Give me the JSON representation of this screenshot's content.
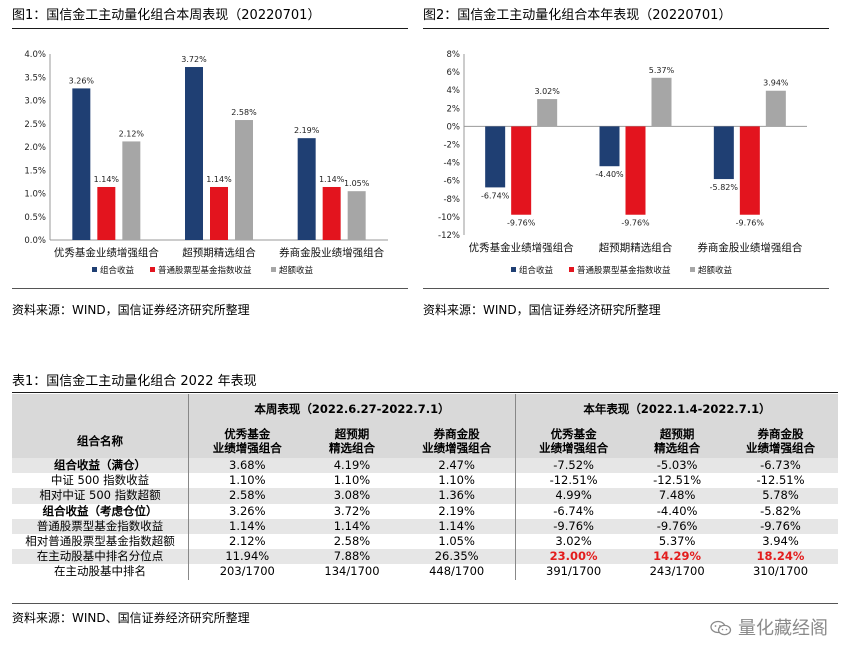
{
  "figure1": {
    "title": "图1：国信金工主动量化组合本周表现（20220701）",
    "source": "资料来源：WIND，国信证券经济研究所整理",
    "legend_icon": "legend-square-icon"
  },
  "figure2": {
    "title": "图2：国信金工主动量化组合本年表现（20220701）",
    "source": "资料来源：WIND，国信证券经济研究所整理",
    "legend_icon": "legend-square-icon"
  },
  "table": {
    "title": "表1：国信金工主动量化组合 2022 年表现",
    "header_week": "本周表现（2022.6.27-2022.7.1）",
    "header_year": "本年表现（2022.1.4-2022.7.1）",
    "col_name": "组合名称",
    "portfolios": [
      [
        "优秀基金",
        "业绩增强组合"
      ],
      [
        "超预期",
        "精选组合"
      ],
      [
        "券商金股",
        "业绩增强组合"
      ]
    ],
    "rows": [
      {
        "label": "组合收益（满仓）",
        "cells": [
          "3.68%",
          "4.19%",
          "2.47%",
          "-7.52%",
          "-5.03%",
          "-6.73%"
        ]
      },
      {
        "label": "中证 500 指数收益",
        "cells": [
          "1.10%",
          "1.10%",
          "1.10%",
          "-12.51%",
          "-12.51%",
          "-12.51%"
        ]
      },
      {
        "label": "相对中证 500 指数超额",
        "cells": [
          "2.58%",
          "3.08%",
          "1.36%",
          "4.99%",
          "7.48%",
          "5.78%"
        ]
      },
      {
        "label": "组合收益（考虑仓位）",
        "cells": [
          "3.26%",
          "3.72%",
          "2.19%",
          "-6.74%",
          "-4.40%",
          "-5.82%"
        ]
      },
      {
        "label": "普通股票型基金指数收益",
        "cells": [
          "1.14%",
          "1.14%",
          "1.14%",
          "-9.76%",
          "-9.76%",
          "-9.76%"
        ]
      },
      {
        "label": "相对普通股票型基金指数超额",
        "cells": [
          "2.12%",
          "2.58%",
          "1.05%",
          "3.02%",
          "5.37%",
          "3.94%"
        ]
      },
      {
        "label": "在主动股基中排名分位点",
        "cells": [
          "11.94%",
          "7.88%",
          "26.35%",
          "23.00%",
          "14.29%",
          "18.24%"
        ]
      },
      {
        "label": "在主动股基中排名",
        "cells": [
          "203/1700",
          "134/1700",
          "448/1700",
          "391/1700",
          "243/1700",
          "310/1700"
        ]
      }
    ],
    "source": "资料来源：WIND、国信证券经济研究所整理"
  },
  "watermark": {
    "text": "量化藏经阁",
    "icon": "wechat-icon"
  },
  "colors": {
    "blue": "#1f3f73",
    "red": "#e3141e",
    "gray": "#a6a6a6",
    "highlight": "#e31c1c"
  },
  "chart_data": [
    {
      "type": "bar",
      "title": "图1：国信金工主动量化组合本周表现（20220701）",
      "categories": [
        "优秀基金业绩增强组合",
        "超预期精选组合",
        "券商金股业绩增强组合"
      ],
      "series": [
        {
          "name": "组合收益",
          "values": [
            3.26,
            3.72,
            2.19
          ]
        },
        {
          "name": "普通股票型基金指数收益",
          "values": [
            1.14,
            1.14,
            1.14
          ]
        },
        {
          "name": "超额收益",
          "values": [
            2.12,
            2.58,
            1.05
          ]
        }
      ],
      "value_labels": [
        [
          "3.26%",
          "3.72%",
          "2.19%"
        ],
        [
          "1.14%",
          "1.14%",
          "1.14%"
        ],
        [
          "2.12%",
          "2.58%",
          "1.05%"
        ]
      ],
      "yticks": [
        "0.0%",
        "0.5%",
        "1.0%",
        "1.5%",
        "2.0%",
        "2.5%",
        "3.0%",
        "3.5%",
        "4.0%"
      ],
      "ylim": [
        0,
        4
      ],
      "legend": "bottom"
    },
    {
      "type": "bar",
      "title": "图2：国信金工主动量化组合本年表现（20220701）",
      "categories": [
        "优秀基金业绩增强组合",
        "超预期精选组合",
        "券商金股业绩增强组合"
      ],
      "series": [
        {
          "name": "组合收益",
          "values": [
            -6.74,
            -4.4,
            -5.82
          ]
        },
        {
          "name": "普通股票型基金指数收益",
          "values": [
            -9.76,
            -9.76,
            -9.76
          ]
        },
        {
          "name": "超额收益",
          "values": [
            3.02,
            5.37,
            3.94
          ]
        }
      ],
      "value_labels": [
        [
          "-6.74%",
          "-4.40%",
          "-5.82%"
        ],
        [
          "-9.76%",
          "-9.76%",
          "-9.76%"
        ],
        [
          "3.02%",
          "5.37%",
          "3.94%"
        ]
      ],
      "yticks": [
        "-12%",
        "-10%",
        "-8%",
        "-6%",
        "-4%",
        "-2%",
        "0%",
        "2%",
        "4%",
        "6%",
        "8%"
      ],
      "ylim": [
        -12,
        8
      ],
      "legend": "bottom"
    }
  ]
}
